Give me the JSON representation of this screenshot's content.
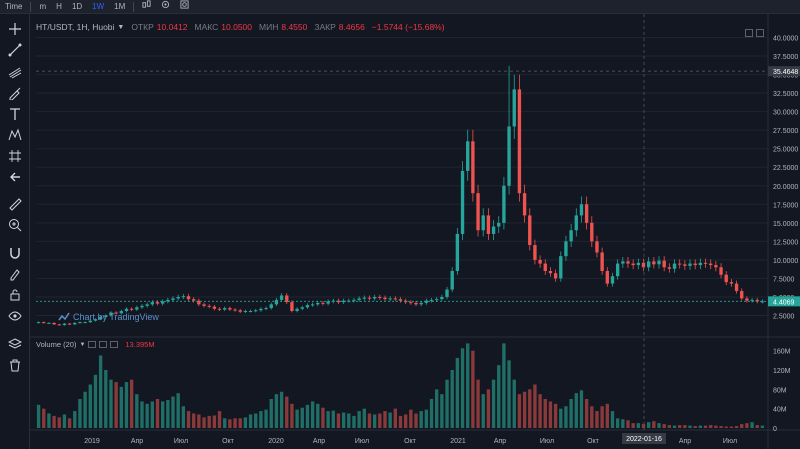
{
  "topbar": {
    "time_label": "Time",
    "items": [
      "m",
      "H",
      "1D",
      "1W",
      "1M"
    ],
    "active": "1W"
  },
  "legend": {
    "symbol": "HT/USDT, 1H, Huobi",
    "open_label": "ОТКР",
    "open": "10.0412",
    "high_label": "МАКС",
    "high": "10.0500",
    "low_label": "МИН",
    "low": "8.4550",
    "close_label": "ЗАКР",
    "close": "8.4656",
    "change": "−1.5744 (−15.68%)"
  },
  "volume_legend": {
    "label": "Volume (20)",
    "value": "13.395M"
  },
  "watermark": "Chart by TradingView",
  "toolbar_icons": [
    "crosshair-icon",
    "trend-line-icon",
    "pitchfork-icon",
    "brush-icon",
    "text-icon",
    "pattern-icon",
    "prediction-icon",
    "back-arrow-icon",
    "ruler-icon",
    "zoom-in-icon",
    "magnet-icon",
    "lock-drawings-icon",
    "lock-icon",
    "eye-icon",
    "layers-icon",
    "trash-icon"
  ],
  "colors": {
    "up": "#26a69a",
    "down": "#ef5350",
    "background": "#131722",
    "current_price": "#26a69a",
    "crosshair_label": "#363a45"
  },
  "chart_data": [
    {
      "type": "candlestick",
      "title": "HT/USDT, 1H, Huobi",
      "y_axis": {
        "ticks": [
          "40.0000",
          "37.5000",
          "35.0000",
          "32.5000",
          "30.0000",
          "27.5000",
          "25.0000",
          "22.5000",
          "20.0000",
          "17.5000",
          "15.0000",
          "12.5000",
          "10.0000",
          "7.5000",
          "5.0000",
          "2.5000"
        ],
        "range": [
          0,
          42.5
        ]
      },
      "x_axis": {
        "ticks": [
          "2019",
          "Апр",
          "Июл",
          "Окт",
          "2020",
          "Апр",
          "Июл",
          "Окт",
          "2021",
          "Апр",
          "Июл",
          "Окт",
          "2022",
          "Апр",
          "Июл"
        ]
      },
      "crosshair": {
        "price_label": "35.4648",
        "date_label": "2022-01-16"
      },
      "current_price_label": "4.4069",
      "closes": [
        1.6,
        1.5,
        1.5,
        1.3,
        1.2,
        1.4,
        1.3,
        1.5,
        1.6,
        1.6,
        1.8,
        2.0,
        2.3,
        2.5,
        2.9,
        2.8,
        3.1,
        3.4,
        3.3,
        3.6,
        3.8,
        4.0,
        4.3,
        4.1,
        4.4,
        4.6,
        4.8,
        5.0,
        5.1,
        4.7,
        4.5,
        4.0,
        3.8,
        3.7,
        3.4,
        3.3,
        3.5,
        3.3,
        3.2,
        3.0,
        3.1,
        3.1,
        3.2,
        3.4,
        3.5,
        4.0,
        4.6,
        5.2,
        4.3,
        3.1,
        3.4,
        3.6,
        3.9,
        4.0,
        4.2,
        4.1,
        4.4,
        4.5,
        4.3,
        4.5,
        4.5,
        4.6,
        4.8,
        4.9,
        4.8,
        5.0,
        4.9,
        4.7,
        4.8,
        4.7,
        4.5,
        4.3,
        4.2,
        4.0,
        4.2,
        4.5,
        4.6,
        4.7,
        5.0,
        6.0,
        8.5,
        13.5,
        22.0,
        26.0,
        19.0,
        14.0,
        16.0,
        13.5,
        14.5,
        15.0,
        20.0,
        28.0,
        33.0,
        19.0,
        16.0,
        12.0,
        10.0,
        9.5,
        8.5,
        8.2,
        7.5,
        10.5,
        12.5,
        14.0,
        16.0,
        17.5,
        15.0,
        12.5,
        11.0,
        8.5,
        6.8,
        7.8,
        9.5,
        9.8,
        9.5,
        9.3,
        9.6,
        9.0,
        9.8,
        9.4,
        9.9,
        9.0,
        8.8,
        9.5,
        9.4,
        9.2,
        9.5,
        9.3,
        9.6,
        9.5,
        9.3,
        9.0,
        8.0,
        7.0,
        6.8,
        5.8,
        4.8,
        4.5,
        4.6,
        4.4,
        4.4
      ],
      "volumes_millions": [
        48,
        40,
        30,
        25,
        22,
        28,
        20,
        35,
        60,
        75,
        90,
        110,
        150,
        120,
        100,
        95,
        85,
        95,
        100,
        70,
        55,
        50,
        55,
        60,
        55,
        58,
        65,
        72,
        45,
        35,
        30,
        28,
        22,
        25,
        26,
        35,
        20,
        18,
        20,
        20,
        22,
        28,
        30,
        35,
        38,
        60,
        70,
        75,
        65,
        50,
        38,
        42,
        48,
        55,
        50,
        42,
        35,
        36,
        30,
        32,
        30,
        25,
        35,
        40,
        30,
        28,
        30,
        35,
        32,
        40,
        25,
        28,
        38,
        30,
        35,
        38,
        60,
        80,
        70,
        100,
        120,
        145,
        165,
        175,
        160,
        100,
        70,
        80,
        100,
        130,
        175,
        140,
        100,
        70,
        75,
        80,
        90,
        70,
        60,
        55,
        50,
        40,
        45,
        60,
        72,
        78,
        60,
        45,
        35,
        45,
        50,
        35,
        20,
        18,
        16,
        10,
        10,
        8,
        12,
        14,
        10,
        8,
        6,
        5,
        6,
        6,
        5,
        4,
        5,
        5,
        6,
        5,
        4,
        3,
        3,
        4,
        8,
        10,
        12,
        6,
        5
      ],
      "unit": "USDT"
    }
  ]
}
